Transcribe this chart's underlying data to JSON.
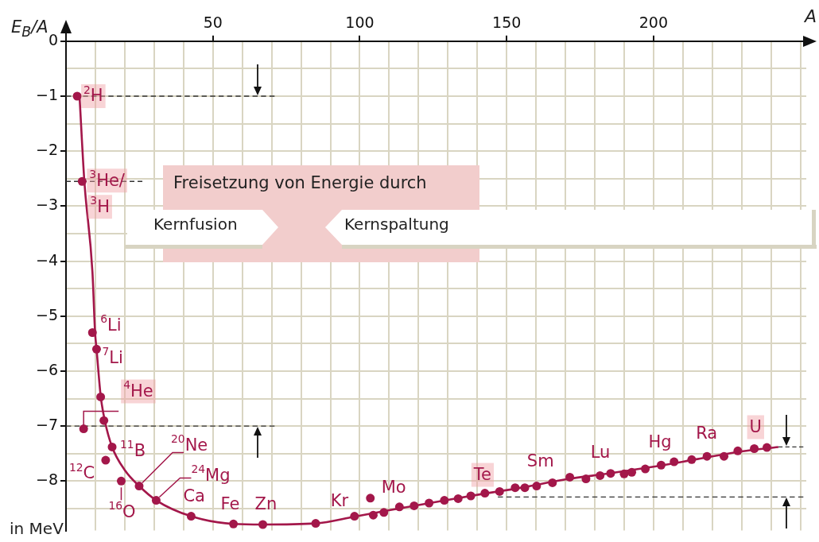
{
  "chart_data": {
    "type": "scatter",
    "xlabel": "A",
    "ylabel": "E$_{B}$/A",
    "grid": true,
    "xlim": [
      0,
      252
    ],
    "ylim": [
      -8.9,
      0
    ],
    "xticks": [
      {
        "value": 10,
        "label": null
      },
      {
        "value": 20,
        "label": null
      },
      {
        "value": 30,
        "label": null
      },
      {
        "value": 40,
        "label": null
      },
      50,
      {
        "value": 60,
        "label": null
      },
      {
        "value": 70,
        "label": null
      },
      {
        "value": 80,
        "label": null
      },
      {
        "value": 90,
        "label": null
      },
      100,
      {
        "value": 110,
        "label": null
      },
      {
        "value": 120,
        "label": null
      },
      {
        "value": 130,
        "label": null
      },
      {
        "value": 140,
        "label": null
      },
      150,
      {
        "value": 160,
        "label": null
      },
      {
        "value": 170,
        "label": null
      },
      {
        "value": 180,
        "label": null
      },
      {
        "value": 190,
        "label": null
      },
      200,
      {
        "value": 210,
        "label": null
      },
      {
        "value": 220,
        "label": null
      },
      {
        "value": 230,
        "label": null
      },
      {
        "value": 240,
        "label": null
      },
      {
        "value": 250,
        "label": null
      }
    ],
    "yticks": [
      {
        "value": -8.5,
        "label": null
      },
      {
        "value": -8,
        "label": "−8"
      },
      {
        "value": -7.5,
        "label": null
      },
      {
        "value": -7,
        "label": "−7"
      },
      {
        "value": -6.5,
        "label": null
      },
      {
        "value": -6,
        "label": "−6"
      },
      {
        "value": -5.5,
        "label": null
      },
      {
        "value": -5,
        "label": "−5"
      },
      {
        "value": -4.5,
        "label": null
      },
      {
        "value": -4,
        "label": "−4"
      },
      {
        "value": -3.5,
        "label": null
      },
      {
        "value": -3,
        "label": "−3"
      },
      {
        "value": -2.5,
        "label": null
      },
      {
        "value": -2,
        "label": "−2"
      },
      {
        "value": -1.5,
        "label": null
      },
      {
        "value": -1,
        "label": "−1"
      },
      {
        "value": -0.5,
        "label": null
      },
      0
    ],
    "series": [
      {
        "type": "scatter",
        "color": "#a3174a",
        "marker": "circle",
        "x": [
          3.8,
          5.5,
          9,
          10.4,
          11.8,
          12.9,
          6,
          15.7,
          13.5,
          18.8,
          24.9,
          30.7,
          42.6,
          57,
          67,
          85,
          98.2,
          103.6,
          104.6,
          108.2,
          113.5,
          118.5,
          123.6,
          128.8,
          133.5,
          137.8,
          142.6,
          147.6,
          152.9,
          156.2,
          160.2,
          165.6,
          171.5,
          177,
          181.8,
          185.4,
          190,
          192.6,
          197.2,
          202.6,
          207,
          213,
          218.2,
          224,
          228.7,
          234.3,
          238.6
        ],
        "values": [
          -1.0,
          -2.55,
          -5.3,
          -5.6,
          -6.47,
          -6.9,
          -7.05,
          -7.38,
          -7.62,
          -8.0,
          -8.09,
          -8.35,
          -8.64,
          -8.78,
          -8.79,
          -8.77,
          -8.64,
          -8.31,
          -8.62,
          -8.57,
          -8.47,
          -8.45,
          -8.4,
          -8.35,
          -8.32,
          -8.27,
          -8.22,
          -8.19,
          -8.12,
          -8.12,
          -8.09,
          -8.03,
          -7.93,
          -7.96,
          -7.9,
          -7.86,
          -7.87,
          -7.84,
          -7.78,
          -7.71,
          -7.65,
          -7.61,
          -7.55,
          -7.55,
          -7.45,
          -7.41,
          -7.39
        ]
      },
      {
        "type": "line",
        "color": "#a3174a",
        "marker": "none",
        "x": [
          4.6,
          6.25,
          9,
          9.9,
          10.4,
          11.8,
          13.2,
          15.7,
          20,
          24.9,
          30.7,
          42.6,
          57,
          67,
          85,
          98,
          110,
          125,
          140,
          155,
          170,
          185,
          200,
          215,
          230,
          242.5
        ],
        "values": [
          -1.0,
          -2.55,
          -4.2,
          -5.3,
          -5.6,
          -6.45,
          -6.9,
          -7.38,
          -7.8,
          -8.09,
          -8.35,
          -8.64,
          -8.78,
          -8.79,
          -8.77,
          -8.65,
          -8.53,
          -8.39,
          -8.25,
          -8.12,
          -7.97,
          -7.86,
          -7.74,
          -7.6,
          -7.46,
          -7.38
        ]
      },
      {
        "type": "line",
        "color": "#333333",
        "marker": "none",
        "line_style": "dashed",
        "x": [
          0,
          71
        ],
        "values": [
          -1,
          -1
        ]
      },
      {
        "type": "line",
        "color": "#333333",
        "marker": "none",
        "line_style": "dashed",
        "x": [
          0,
          26
        ],
        "values": [
          -2.55,
          -2.55
        ]
      },
      {
        "type": "line",
        "color": "#333333",
        "marker": "none",
        "line_style": "dashed",
        "x": [
          0,
          71
        ],
        "values": [
          -7,
          -7
        ]
      },
      {
        "type": "line",
        "color": "#333333",
        "marker": "none",
        "line_style": "dashed",
        "x": [
          242.5,
          251
        ],
        "values": [
          -7.38,
          -7.38
        ]
      },
      {
        "type": "line",
        "color": "#333333",
        "marker": "none",
        "line_style": "dashed",
        "x": [
          147,
          251
        ],
        "values": [
          -8.29,
          -8.29
        ]
      }
    ],
    "annotations": [
      {
        "text": "$^{2}$H",
        "x": 3.8,
        "y": -1.0
      },
      {
        "text": "$^{3}$He/",
        "x": 5.5,
        "y": -2.55
      },
      {
        "text": "$^{3}$H",
        "x": 5.5,
        "y": -2.55
      },
      {
        "text": "$^{6}$Li",
        "x": 9,
        "y": -5.3
      },
      {
        "text": "$^{7}$Li",
        "x": 10.4,
        "y": -5.6
      },
      {
        "text": "$^{4}$He",
        "x": 6,
        "y": -7.05
      },
      {
        "text": "$^{11}$B",
        "x": 15.7,
        "y": -7.38
      },
      {
        "text": "$^{12}$C",
        "x": 13.5,
        "y": -7.62
      },
      {
        "text": "$^{16}$O",
        "x": 18.8,
        "y": -8.0
      },
      {
        "text": "$^{20}$Ne",
        "x": 24.9,
        "y": -8.09
      },
      {
        "text": "$^{24}$Mg",
        "x": 30.7,
        "y": -8.35
      },
      {
        "text": "Ca",
        "x": 42.6,
        "y": -8.64
      },
      {
        "text": "Fe",
        "x": 57,
        "y": -8.78
      },
      {
        "text": "Zn",
        "x": 67,
        "y": -8.79
      },
      {
        "text": "Kr",
        "x": 98.2,
        "y": -8.64
      },
      {
        "text": "Mo",
        "x": 103.6,
        "y": -8.31
      },
      {
        "text": "Te",
        "x": 142.6,
        "y": -8.22
      },
      {
        "text": "Sm",
        "x": 160.2,
        "y": -8.09
      },
      {
        "text": "Lu",
        "x": 181.8,
        "y": -7.9
      },
      {
        "text": "Hg",
        "x": 202.6,
        "y": -7.71
      },
      {
        "text": "Ra",
        "x": 218.2,
        "y": -7.55
      },
      {
        "text": "U",
        "x": 234.3,
        "y": -7.41
      },
      "Freisetzung von Energie durch",
      "Kernfusion",
      "Kernspaltung",
      "in MeV"
    ]
  }
}
